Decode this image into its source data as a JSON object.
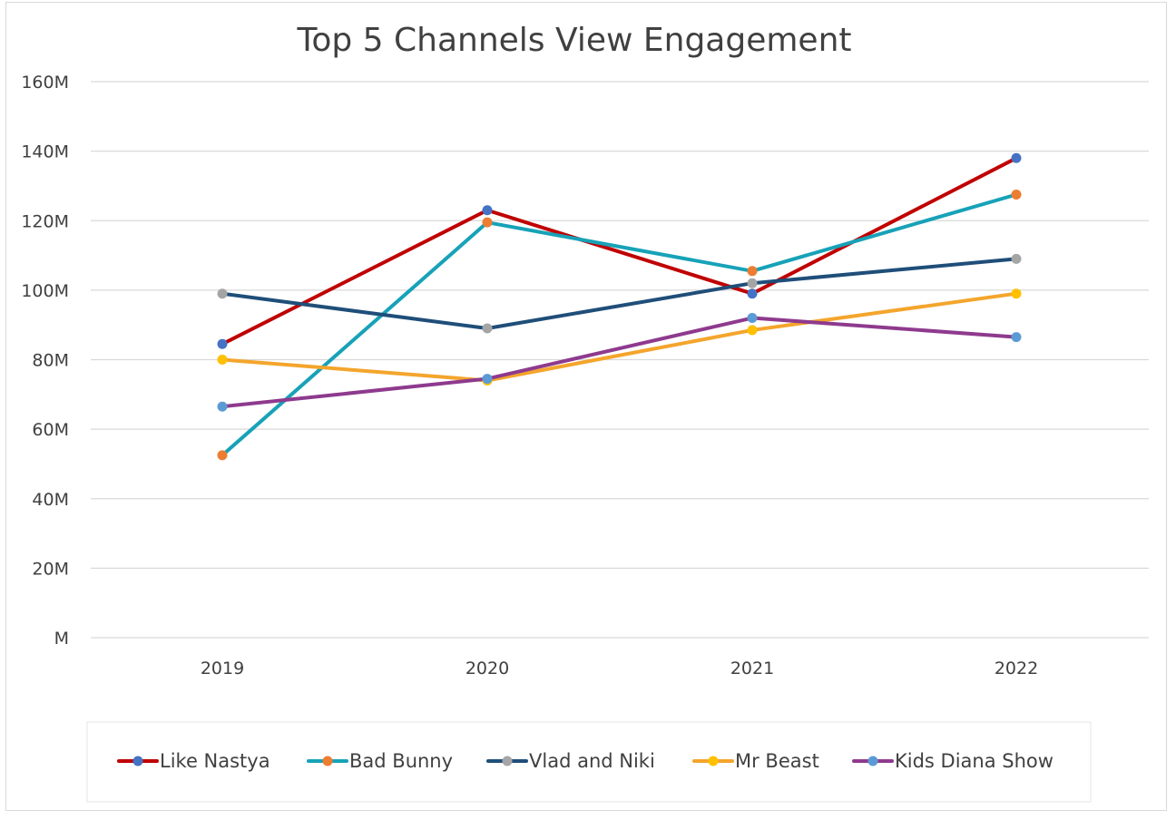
{
  "chart_data": {
    "type": "line",
    "title": "Top 5 Channels View Engagement",
    "xlabel": "",
    "ylabel": "",
    "categories": [
      "2019",
      "2020",
      "2021",
      "2022"
    ],
    "y_ticks": [
      0,
      20,
      40,
      60,
      80,
      100,
      120,
      140,
      160
    ],
    "y_tick_labels": [
      "M",
      "20M",
      "40M",
      "60M",
      "80M",
      "100M",
      "120M",
      "140M",
      "160M"
    ],
    "ylim": [
      0,
      160
    ],
    "unit": "M",
    "grid": true,
    "legend_position": "bottom",
    "series": [
      {
        "name": "Like Nastya",
        "values": [
          84.5,
          123,
          99,
          138
        ],
        "line_color": "#C00000",
        "marker_color": "#4472C4"
      },
      {
        "name": "Bad Bunny",
        "values": [
          52.5,
          119.5,
          105.5,
          127.5
        ],
        "line_color": "#17A2B8",
        "marker_color": "#ED7D31"
      },
      {
        "name": "Vlad and Niki",
        "values": [
          99,
          89,
          102,
          109
        ],
        "line_color": "#1F4E79",
        "marker_color": "#A5A5A5"
      },
      {
        "name": "Mr Beast",
        "values": [
          80,
          74,
          88.5,
          99
        ],
        "line_color": "#F4A52C",
        "marker_color": "#FFC000"
      },
      {
        "name": "Kids Diana Show",
        "values": [
          66.5,
          74.5,
          92,
          86.5
        ],
        "line_color": "#8E3A8E",
        "marker_color": "#5B9BD5"
      }
    ]
  }
}
